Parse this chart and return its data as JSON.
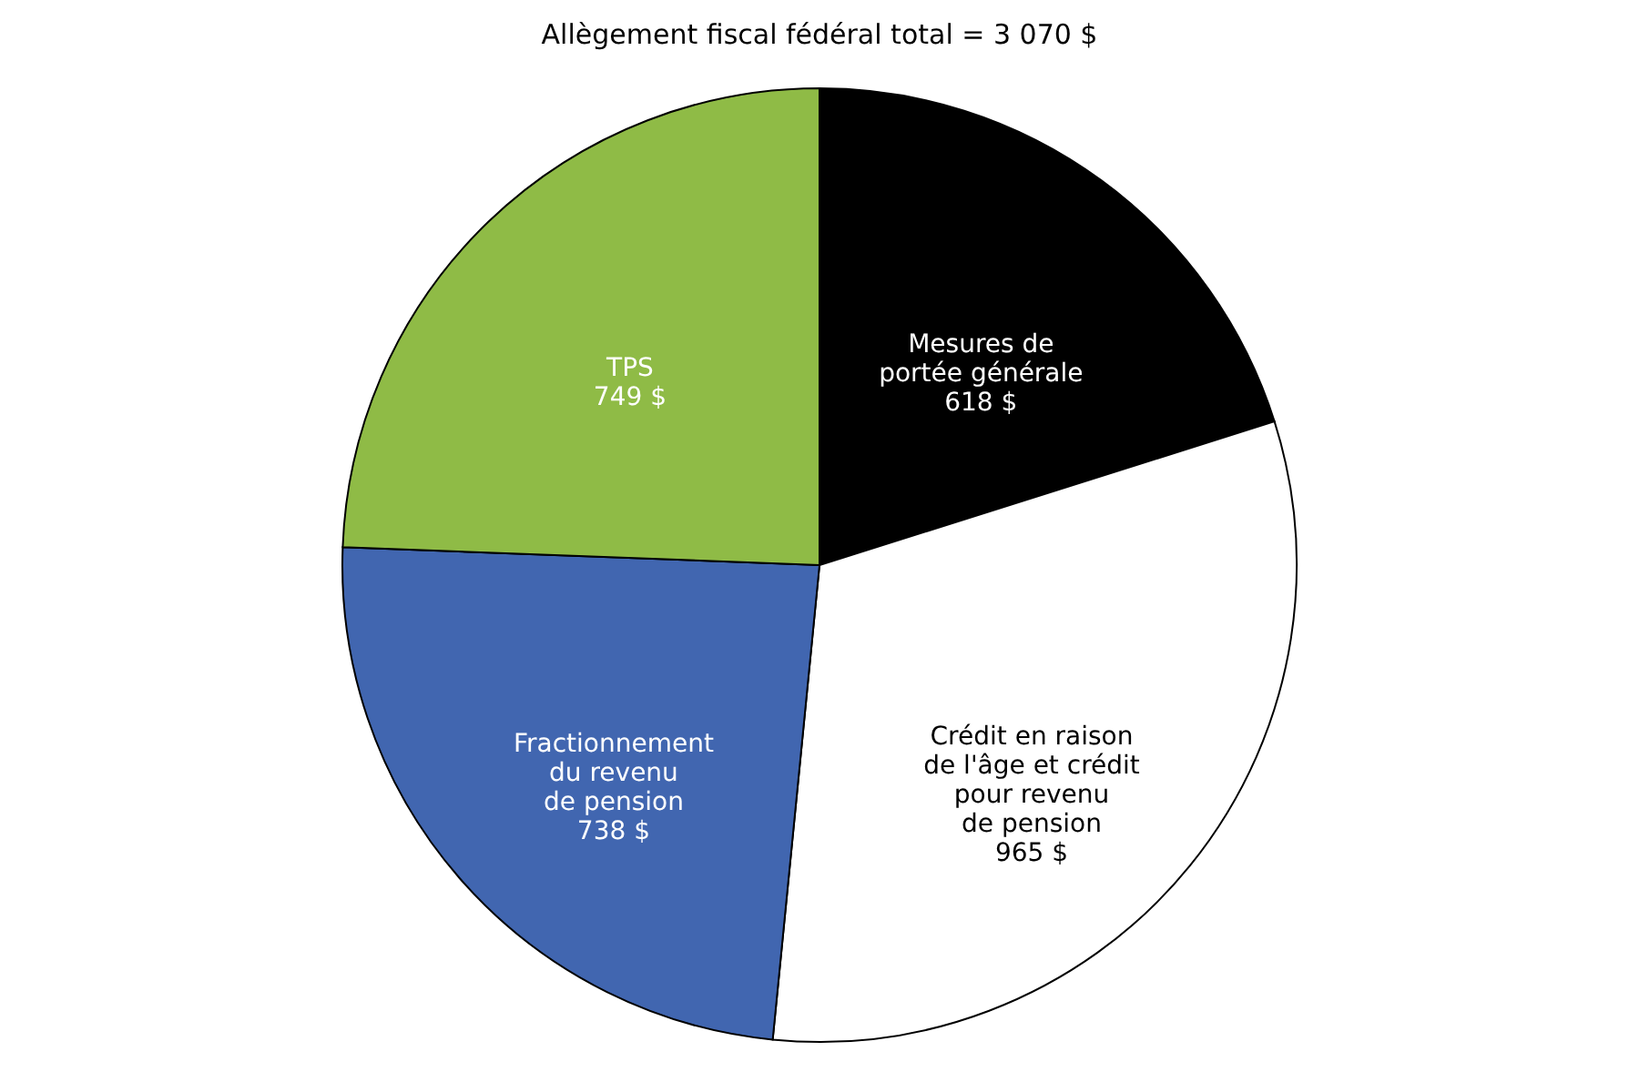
{
  "chart_data": {
    "type": "pie",
    "title": "Allègement fiscal fédéral total = 3 070 $",
    "categories": [
      "Mesures de\nportée générale",
      "Crédit en raison\nde l'âge et crédit\npour revenu\nde pension",
      "Fractionnement\ndu revenu\nde pension",
      "TPS"
    ],
    "values": [
      618,
      965,
      738,
      749
    ],
    "value_labels": [
      "618 $",
      "965 $",
      "738 $",
      "749 $"
    ],
    "colors": [
      "#000000",
      "#ffffff",
      "#4166b0",
      "#8fbb46"
    ],
    "legend": false
  }
}
